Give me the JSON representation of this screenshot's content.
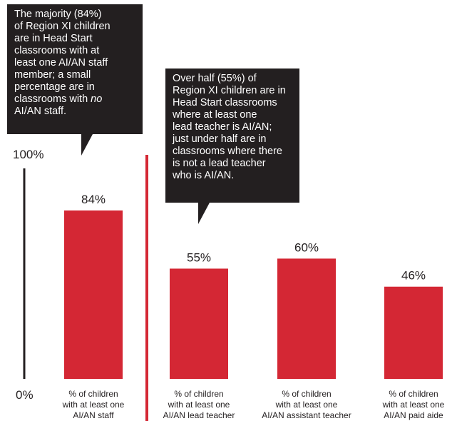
{
  "chart_data": {
    "type": "bar",
    "y_axis": {
      "min_label": "0%",
      "max_label": "100%",
      "ylim": [
        0,
        100
      ]
    },
    "colors": {
      "bar": "#d42734",
      "divider": "#d42734",
      "axis": "#231f20",
      "text": "#231f20"
    },
    "bars": [
      {
        "label_lines": [
          "% of children",
          "with at least one",
          "AI/AN staff"
        ],
        "value": 84,
        "value_label": "84%"
      },
      {
        "label_lines": [
          "% of children",
          "with at least one",
          "AI/AN lead teacher"
        ],
        "value": 55,
        "value_label": "55%"
      },
      {
        "label_lines": [
          "% of children",
          "with at least one",
          "AI/AN assistant teacher"
        ],
        "value": 60,
        "value_label": "60%"
      },
      {
        "label_lines": [
          "% of children",
          "with at least one",
          "AI/AN paid aide"
        ],
        "value": 46,
        "value_label": "46%"
      }
    ]
  },
  "callouts": [
    {
      "before": "The majority (84%)\nof Region XI children\nare in Head Start\nclassrooms with at\nleast one AI/AN staff\nmember; a small\npercentage are in\nclassrooms with ",
      "emph": "no",
      "after": "\nAI/AN staff."
    },
    {
      "text": "Over half (55%) of\nRegion XI children are in\nHead Start classrooms\nwhere at least one\nlead teacher is AI/AN;\njust under half are in\nclassrooms where there\nis not a lead teacher\nwho is AI/AN."
    }
  ]
}
